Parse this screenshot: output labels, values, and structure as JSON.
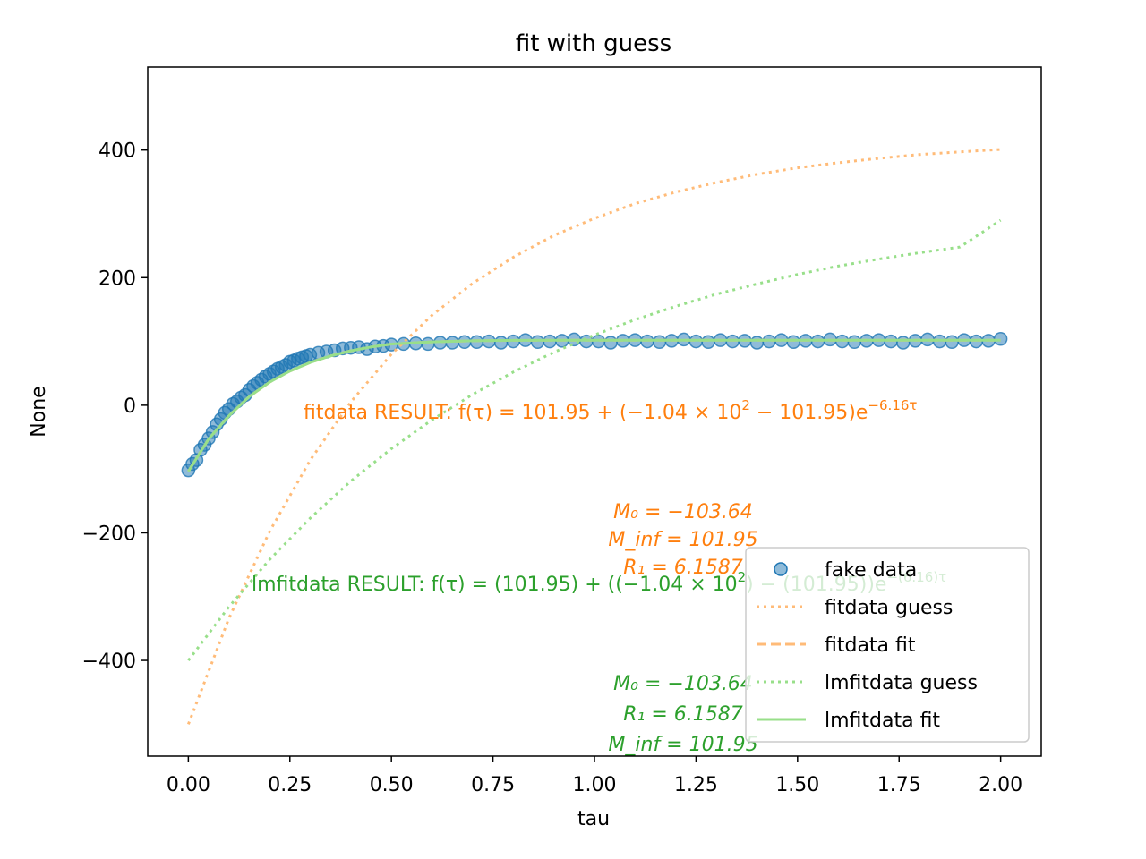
{
  "chart_data": {
    "type": "line",
    "title": "fit with guess",
    "xlabel": "tau",
    "ylabel": "None",
    "xlim": [
      -0.1,
      2.1
    ],
    "ylim": [
      -550,
      530
    ],
    "xticks": [
      0.0,
      0.25,
      0.5,
      0.75,
      1.0,
      1.25,
      1.5,
      1.75,
      2.0
    ],
    "xtick_labels": [
      "0.00",
      "0.25",
      "0.50",
      "0.75",
      "1.00",
      "1.25",
      "1.50",
      "1.75",
      "2.00"
    ],
    "yticks": [
      -400,
      -200,
      0,
      200,
      400
    ],
    "ytick_labels": [
      "−400",
      "−200",
      "0",
      "200",
      "400"
    ],
    "grid": false,
    "legend_position": "lower-right",
    "colors": {
      "data": "#1f77b4",
      "fitdata": "#ff7f0e",
      "lmfitdata": "#2ca02c"
    },
    "series": [
      {
        "name": "fake data",
        "style": "markers",
        "x": [
          0.0,
          0.01,
          0.02,
          0.03,
          0.04,
          0.05,
          0.06,
          0.07,
          0.08,
          0.09,
          0.1,
          0.11,
          0.12,
          0.13,
          0.14,
          0.15,
          0.16,
          0.17,
          0.18,
          0.19,
          0.2,
          0.21,
          0.22,
          0.23,
          0.24,
          0.25,
          0.26,
          0.27,
          0.28,
          0.29,
          0.3,
          0.32,
          0.34,
          0.36,
          0.38,
          0.4,
          0.42,
          0.44,
          0.46,
          0.48,
          0.5,
          0.53,
          0.56,
          0.59,
          0.62,
          0.65,
          0.68,
          0.71,
          0.74,
          0.77,
          0.8,
          0.83,
          0.86,
          0.89,
          0.92,
          0.95,
          0.98,
          1.01,
          1.04,
          1.07,
          1.1,
          1.13,
          1.16,
          1.19,
          1.22,
          1.25,
          1.28,
          1.31,
          1.34,
          1.37,
          1.4,
          1.43,
          1.46,
          1.49,
          1.52,
          1.55,
          1.58,
          1.61,
          1.64,
          1.67,
          1.7,
          1.73,
          1.76,
          1.79,
          1.82,
          1.85,
          1.88,
          1.91,
          1.94,
          1.97,
          2.0
        ],
        "y": [
          -102,
          -92,
          -86,
          -70,
          -62,
          -52,
          -42,
          -30,
          -22,
          -12,
          -6,
          2,
          6,
          12,
          16,
          24,
          30,
          35,
          40,
          45,
          49,
          53,
          57,
          60,
          63,
          68,
          70,
          73,
          75,
          77,
          79,
          82,
          84,
          86,
          89,
          90,
          91,
          88,
          92,
          93,
          95,
          96,
          97,
          96,
          98,
          98,
          99,
          99,
          100,
          98,
          100,
          102,
          99,
          100,
          101,
          103,
          100,
          100,
          98,
          101,
          102,
          100,
          99,
          101,
          103,
          100,
          99,
          102,
          100,
          101,
          98,
          100,
          102,
          99,
          101,
          100,
          103,
          100,
          99,
          101,
          102,
          100,
          98,
          101,
          103,
          100,
          99,
          102,
          100,
          101,
          104
        ]
      },
      {
        "name": "fitdata guess",
        "style": "dotted",
        "color": "#ffbb78",
        "x": [
          0.0,
          0.1,
          0.2,
          0.3,
          0.4,
          0.5,
          0.6,
          0.7,
          0.8,
          0.9,
          1.0,
          1.1,
          1.2,
          1.3,
          1.4,
          1.5,
          1.6,
          1.7,
          1.8,
          1.9,
          2.0
        ],
        "y": [
          -500,
          -334,
          -198,
          -86,
          5,
          80,
          141,
          191,
          232,
          266,
          293,
          316,
          334,
          349,
          362,
          372,
          380,
          387,
          393,
          397,
          401
        ]
      },
      {
        "name": "fitdata fit",
        "style": "dashed",
        "color": "#ffbb78",
        "x": [
          0.0,
          0.05,
          0.1,
          0.15,
          0.2,
          0.25,
          0.3,
          0.35,
          0.4,
          0.45,
          0.5,
          0.6,
          0.7,
          0.8,
          1.0,
          1.2,
          1.4,
          1.6,
          1.8,
          2.0
        ],
        "y": [
          -103.64,
          -52.9,
          -16.6,
          13.6,
          36.1,
          53.5,
          67.0,
          77.3,
          85.2,
          91.3,
          95.9,
          99.3,
          101.0,
          101.6,
          101.9,
          101.95,
          101.95,
          101.95,
          101.95,
          101.95
        ]
      },
      {
        "name": "lmfitdata guess",
        "style": "dotted",
        "color": "#98df8a",
        "x": [
          0.0,
          0.1,
          0.2,
          0.3,
          0.4,
          0.5,
          0.6,
          0.7,
          0.8,
          0.9,
          1.0,
          1.1,
          1.2,
          1.3,
          1.4,
          1.5,
          1.6,
          1.7,
          1.8,
          1.9,
          2.0
        ],
        "y": [
          -400,
          -316,
          -242,
          -177,
          -119,
          -68,
          -23,
          17,
          52,
          83,
          110,
          134,
          155,
          174,
          190,
          205,
          218,
          229,
          239,
          248,
          290
        ]
      },
      {
        "name": "lmfitdata fit",
        "style": "solid",
        "color": "#98df8a",
        "x": [
          0.0,
          0.05,
          0.1,
          0.15,
          0.2,
          0.25,
          0.3,
          0.35,
          0.4,
          0.45,
          0.5,
          0.6,
          0.7,
          0.8,
          1.0,
          1.2,
          1.4,
          1.6,
          1.8,
          2.0
        ],
        "y": [
          -103.64,
          -52.9,
          -16.6,
          13.6,
          36.1,
          53.5,
          67.0,
          77.3,
          85.2,
          91.3,
          95.9,
          99.3,
          101.0,
          101.6,
          101.9,
          101.95,
          101.95,
          101.95,
          101.95,
          101.95
        ]
      }
    ],
    "legend": [
      "fake data",
      "fitdata guess",
      "fitdata fit",
      "lmfitdata guess",
      "lmfitdata fit"
    ],
    "annotations": {
      "fit_result": {
        "prefix": "fitdata RESULT: ",
        "f": "f(τ) = 101.95 + (−1.04 × 10",
        "f_sup": "2",
        "f_mid": " − 101.95)e",
        "f_exp": "−6.16τ",
        "params": [
          "M₀ = −103.64",
          "M_inf = 101.95",
          "R₁ = 6.1587"
        ]
      },
      "lmfit_result": {
        "prefix": "lmfitdata RESULT: ",
        "f": "f(τ) = (101.95) + ((−1.04 × 10",
        "f_sup": "2",
        "f_mid": ") − (101.95))e",
        "f_exp": "−(6.16)τ",
        "params": [
          "M₀ = −103.64",
          "R₁ = 6.1587",
          "M_inf = 101.95"
        ]
      }
    }
  }
}
